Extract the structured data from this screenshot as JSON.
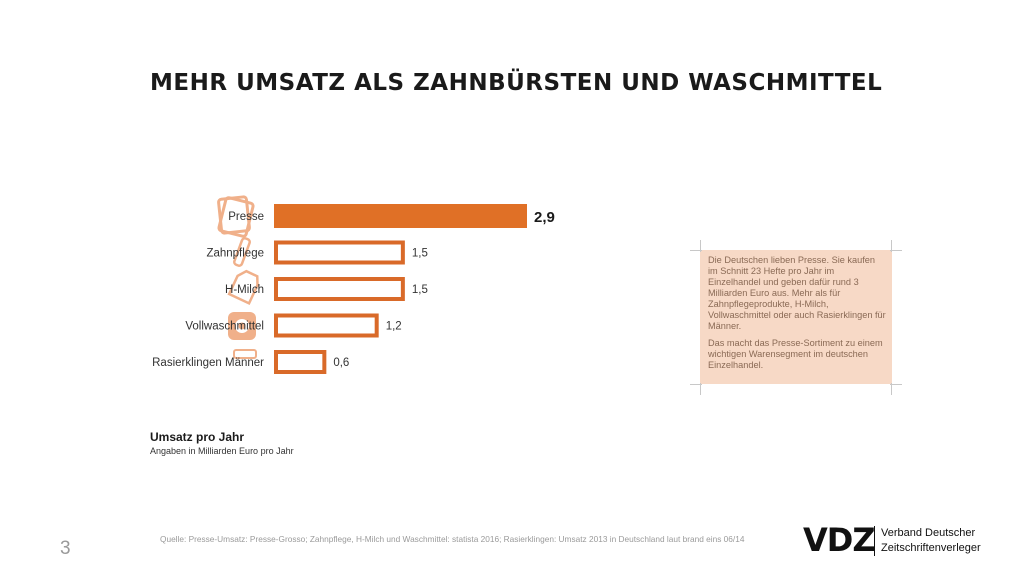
{
  "slide": {
    "title": "MEHR UMSATZ ALS ZAHNBÜRSTEN UND WASCHMITTEL",
    "page_number": "3"
  },
  "chart_data": {
    "type": "bar",
    "orientation": "horizontal",
    "categories": [
      "Presse",
      "Zahnpflege",
      "H-Milch",
      "Vollwaschmittel",
      "Rasierklingen Männer"
    ],
    "values": [
      2.9,
      1.5,
      1.5,
      1.2,
      0.6
    ],
    "value_labels": [
      "2,9",
      "1,5",
      "1,5",
      "1,2",
      "0,6"
    ],
    "highlight_index": 0,
    "title": "Umsatz pro Jahr",
    "subtitle": "Angaben in Milliarden Euro pro Jahr",
    "xlim": [
      0,
      2.9
    ],
    "grid": false,
    "colors": {
      "accent": "#e07026",
      "outline": "#d96a29",
      "icon": "#f0b08a"
    },
    "icons": [
      "magazine-icon",
      "toothbrush-icon",
      "milk-carton-icon",
      "detergent-icon",
      "razor-icon"
    ]
  },
  "infobox": {
    "paragraphs": [
      "Die Deutschen lieben Presse. Sie kaufen im Schnitt 23 Hefte pro Jahr im Einzelhandel und geben dafür rund 3 Milliarden Euro aus. Mehr als für Zahnpflegeprodukte, H-Milch, Vollwaschmittel oder auch Rasierklingen für Männer.",
      "Das macht das Presse-Sortiment zu einem wichtigen Warensegment im deutschen Einzelhandel."
    ],
    "background": "#f7d9c6"
  },
  "footer": {
    "source": "Quelle: Presse-Umsatz: Presse-Grosso; Zahnpflege, H-Milch und Waschmittel: statista 2016; Rasierklingen: Umsatz 2013 in Deutschland laut brand eins 06/14",
    "logo_mark": "VDZ",
    "logo_line1": "Verband Deutscher",
    "logo_line2": "Zeitschriftenverleger"
  }
}
